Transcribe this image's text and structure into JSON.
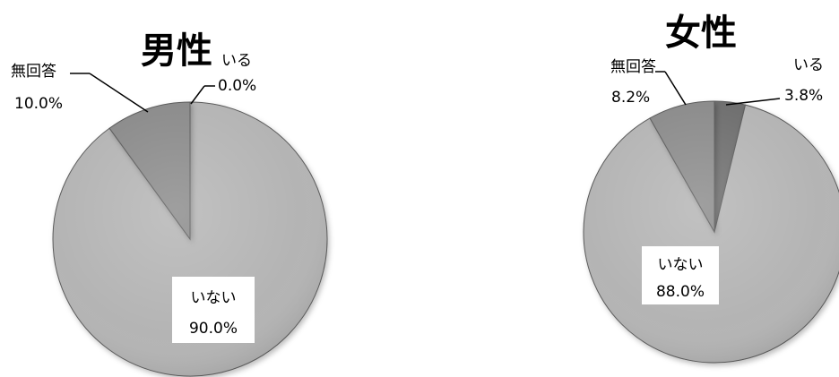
{
  "chart_data": [
    {
      "type": "pie",
      "title": "男性",
      "slices": [
        {
          "label": "いる",
          "value": 0.0,
          "display": "0.0%"
        },
        {
          "label": "いない",
          "value": 90.0,
          "display": "90.0%"
        },
        {
          "label": "無回答",
          "value": 10.0,
          "display": "10.0%"
        }
      ],
      "legend": "none",
      "colors": {
        "いる": "#6d6d6d",
        "いない": "#b4b4b4",
        "無回答": "#8a8a8a"
      }
    },
    {
      "type": "pie",
      "title": "女性",
      "slices": [
        {
          "label": "いる",
          "value": 3.8,
          "display": "3.8%"
        },
        {
          "label": "いない",
          "value": 88.0,
          "display": "88.0%"
        },
        {
          "label": "無回答",
          "value": 8.2,
          "display": "8.2%"
        }
      ],
      "legend": "none",
      "colors": {
        "いる": "#6d6d6d",
        "いない": "#b4b4b4",
        "無回答": "#8a8a8a"
      }
    }
  ]
}
